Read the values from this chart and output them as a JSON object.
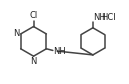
{
  "bg_color": "#ffffff",
  "line_color": "#444444",
  "text_color": "#222222",
  "line_width": 1.1,
  "font_size": 6.0,
  "fig_width": 1.29,
  "fig_height": 0.84,
  "dpi": 100,
  "xlim": [
    0,
    10
  ],
  "ylim": [
    0,
    6.5
  ]
}
